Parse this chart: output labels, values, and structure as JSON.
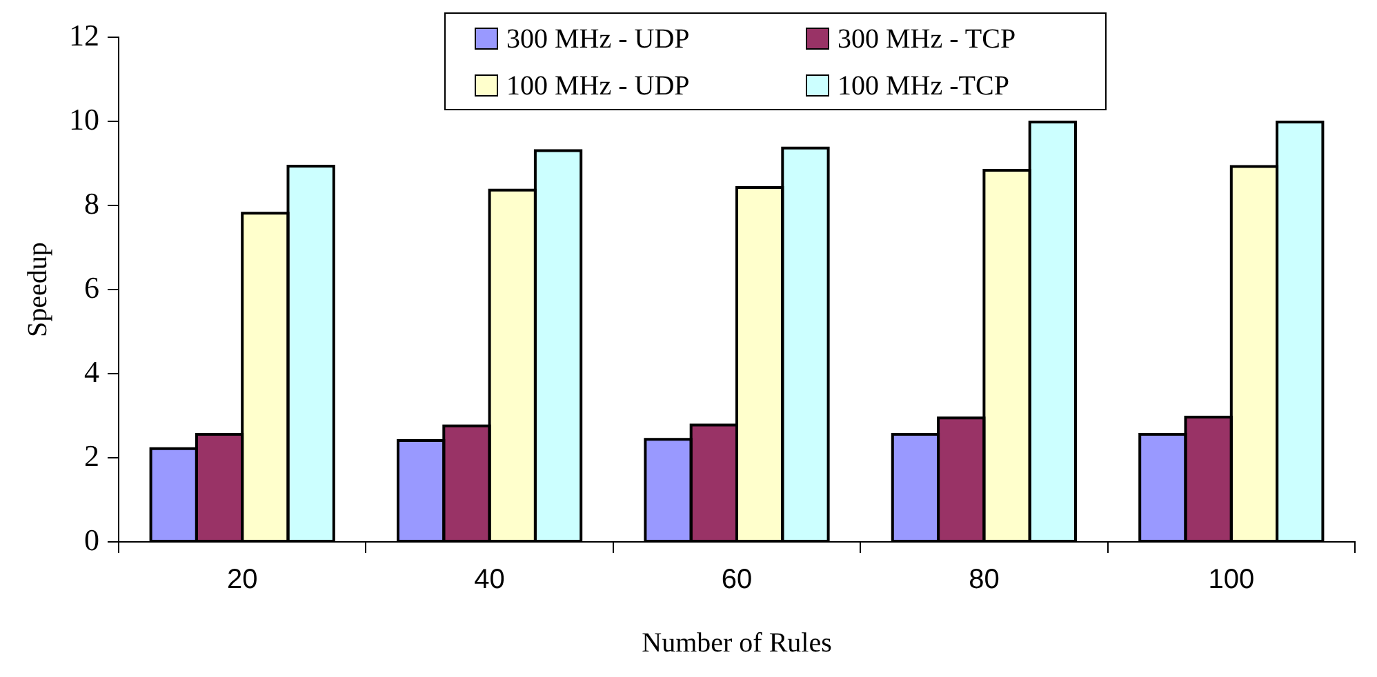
{
  "chart_data": {
    "type": "bar",
    "xlabel": "Number of Rules",
    "ylabel": "Speedup",
    "categories": [
      "20",
      "40",
      "60",
      "80",
      "100"
    ],
    "series": [
      {
        "name": "300 MHz - UDP",
        "color": "#9999ff",
        "values": [
          2.22,
          2.41,
          2.44,
          2.56,
          2.56
        ]
      },
      {
        "name": "300 MHz - TCP",
        "color": "#993366",
        "values": [
          2.56,
          2.76,
          2.78,
          2.95,
          2.97
        ]
      },
      {
        "name": "100 MHz - UDP",
        "color": "#ffffcc",
        "values": [
          7.82,
          8.37,
          8.43,
          8.84,
          8.93
        ]
      },
      {
        "name": "100 MHz -TCP",
        "color": "#ccffff",
        "values": [
          8.94,
          9.31,
          9.37,
          9.99,
          9.99
        ]
      }
    ],
    "ylim": [
      0,
      12
    ],
    "yticks": [
      0,
      2,
      4,
      6,
      8,
      10,
      12
    ],
    "grid": false,
    "legend": "top"
  }
}
